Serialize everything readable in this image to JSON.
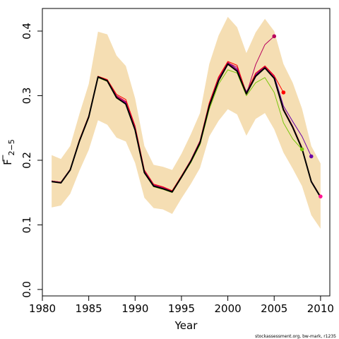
{
  "chart_data": {
    "type": "line",
    "xlabel": "Year",
    "ylabel_main": "F",
    "ylabel_sub": "2−5",
    "footnote": "stockassessment.org, bw-mark, r1235",
    "xlim": [
      1980,
      2011
    ],
    "ylim": [
      -0.01,
      0.435
    ],
    "xticks": [
      1980,
      1985,
      1990,
      1995,
      2000,
      2005,
      2010
    ],
    "yticks": [
      0.0,
      0.1,
      0.2,
      0.3,
      0.4
    ],
    "ytick_labels": [
      "0.0",
      "0.1",
      "0.2",
      "0.3",
      "0.4"
    ],
    "band_color": "#f5deb3",
    "band": {
      "x": [
        1981,
        1982,
        1983,
        1984,
        1985,
        1986,
        1987,
        1988,
        1989,
        1990,
        1991,
        1992,
        1993,
        1994,
        1995,
        1996,
        1997,
        1998,
        1999,
        2000,
        2001,
        2002,
        2003,
        2004,
        2005,
        2006,
        2007,
        2008,
        2009,
        2010
      ],
      "lower": [
        0.127,
        0.13,
        0.148,
        0.184,
        0.216,
        0.262,
        0.255,
        0.235,
        0.229,
        0.196,
        0.142,
        0.126,
        0.124,
        0.117,
        0.141,
        0.163,
        0.188,
        0.237,
        0.261,
        0.279,
        0.271,
        0.238,
        0.264,
        0.273,
        0.248,
        0.212,
        0.187,
        0.16,
        0.115,
        0.094
      ],
      "upper": [
        0.208,
        0.202,
        0.222,
        0.272,
        0.318,
        0.399,
        0.395,
        0.362,
        0.346,
        0.296,
        0.222,
        0.193,
        0.19,
        0.185,
        0.21,
        0.24,
        0.273,
        0.349,
        0.393,
        0.422,
        0.406,
        0.366,
        0.398,
        0.419,
        0.4,
        0.349,
        0.32,
        0.28,
        0.222,
        0.195
      ]
    },
    "series": [
      {
        "color": "#000000",
        "width": 2.0,
        "x": [
          1981,
          1982,
          1983,
          1984,
          1985,
          1986,
          1987,
          1988,
          1989,
          1990,
          1991,
          1992,
          1993,
          1994,
          1995,
          1996,
          1997,
          1998,
          1999,
          2000,
          2001,
          2002,
          2003,
          2004,
          2005,
          2006,
          2007,
          2008,
          2009,
          2010
        ],
        "y": [
          0.167,
          0.165,
          0.185,
          0.23,
          0.267,
          0.329,
          0.323,
          0.297,
          0.287,
          0.247,
          0.181,
          0.16,
          0.156,
          0.151,
          0.174,
          0.198,
          0.227,
          0.284,
          0.323,
          0.349,
          0.338,
          0.303,
          0.33,
          0.343,
          0.327,
          0.278,
          0.251,
          0.218,
          0.167,
          0.143
        ]
      },
      {
        "color": "#cc0044",
        "width": 1.0,
        "x": [
          1981,
          1982,
          1983,
          1984,
          1985,
          1986,
          1987,
          1988,
          1989,
          1990,
          1991,
          1992,
          1993,
          1994,
          1995,
          1996,
          1997,
          1998,
          1999,
          2000,
          2001,
          2002,
          2003,
          2004,
          2005,
          2006,
          2007,
          2008,
          2009,
          2010
        ],
        "y": [
          0.168,
          0.166,
          0.186,
          0.231,
          0.268,
          0.33,
          0.324,
          0.299,
          0.29,
          0.25,
          0.183,
          0.162,
          0.157,
          0.152,
          0.175,
          0.199,
          0.228,
          0.286,
          0.326,
          0.352,
          0.341,
          0.305,
          0.332,
          0.345,
          0.33,
          0.28,
          0.253,
          0.22,
          0.168,
          0.144
        ]
      },
      {
        "color": "#ff1493",
        "width": 1.0,
        "x": [
          1981,
          1982,
          1983,
          1984,
          1985,
          1986,
          1987,
          1988,
          1989,
          1990,
          1991,
          1992,
          1993,
          1994,
          1995,
          1996,
          1997,
          1998,
          1999,
          2000,
          2001,
          2002,
          2003,
          2004,
          2005,
          2006,
          2007,
          2008,
          2009,
          2010
        ],
        "y": [
          0.168,
          0.166,
          0.186,
          0.231,
          0.268,
          0.33,
          0.323,
          0.298,
          0.289,
          0.249,
          0.182,
          0.161,
          0.157,
          0.152,
          0.175,
          0.199,
          0.228,
          0.285,
          0.325,
          0.351,
          0.34,
          0.304,
          0.331,
          0.344,
          0.329,
          0.279,
          0.252,
          0.219,
          0.168,
          0.144
        ],
        "end_point": true
      },
      {
        "color": "#6a00a8",
        "width": 1.0,
        "x": [
          1981,
          1982,
          1983,
          1984,
          1985,
          1986,
          1987,
          1988,
          1989,
          1990,
          1991,
          1992,
          1993,
          1994,
          1995,
          1996,
          1997,
          1998,
          1999,
          2000,
          2001,
          2002,
          2003,
          2004,
          2005,
          2006,
          2007,
          2008,
          2009
        ],
        "y": [
          0.167,
          0.165,
          0.185,
          0.23,
          0.268,
          0.329,
          0.322,
          0.297,
          0.289,
          0.249,
          0.182,
          0.161,
          0.156,
          0.151,
          0.174,
          0.199,
          0.229,
          0.287,
          0.327,
          0.351,
          0.341,
          0.306,
          0.333,
          0.346,
          0.331,
          0.284,
          0.26,
          0.237,
          0.206
        ],
        "end_point": true
      },
      {
        "color": "#7ac70c",
        "width": 1.0,
        "x": [
          1981,
          1982,
          1983,
          1984,
          1985,
          1986,
          1987,
          1988,
          1989,
          1990,
          1991,
          1992,
          1993,
          1994,
          1995,
          1996,
          1997,
          1998,
          1999,
          2000,
          2001,
          2002,
          2003,
          2004,
          2005,
          2006,
          2007,
          2008
        ],
        "y": [
          0.167,
          0.165,
          0.185,
          0.229,
          0.267,
          0.328,
          0.322,
          0.296,
          0.287,
          0.246,
          0.18,
          0.159,
          0.155,
          0.15,
          0.173,
          0.196,
          0.224,
          0.279,
          0.318,
          0.34,
          0.335,
          0.3,
          0.32,
          0.328,
          0.305,
          0.258,
          0.233,
          0.217
        ],
        "end_point": true
      },
      {
        "color": "#ff0000",
        "width": 1.0,
        "x": [
          1981,
          1982,
          1983,
          1984,
          1985,
          1986,
          1987,
          1988,
          1989,
          1990,
          1991,
          1992,
          1993,
          1994,
          1995,
          1996,
          1997,
          1998,
          1999,
          2000,
          2001,
          2002,
          2003,
          2004,
          2005,
          2006
        ],
        "y": [
          0.168,
          0.166,
          0.186,
          0.232,
          0.269,
          0.33,
          0.325,
          0.302,
          0.294,
          0.253,
          0.185,
          0.163,
          0.159,
          0.153,
          0.176,
          0.2,
          0.23,
          0.289,
          0.329,
          0.353,
          0.347,
          0.304,
          0.335,
          0.346,
          0.331,
          0.305
        ],
        "end_point": true
      },
      {
        "color": "#b8005c",
        "width": 1.0,
        "x": [
          1981,
          1982,
          1983,
          1984,
          1985,
          1986,
          1987,
          1988,
          1989,
          1990,
          1991,
          1992,
          1993,
          1994,
          1995,
          1996,
          1997,
          1998,
          1999,
          2000,
          2001,
          2002,
          2003,
          2004,
          2005
        ],
        "y": [
          0.168,
          0.166,
          0.186,
          0.231,
          0.268,
          0.329,
          0.324,
          0.3,
          0.291,
          0.251,
          0.184,
          0.162,
          0.158,
          0.152,
          0.175,
          0.2,
          0.23,
          0.287,
          0.327,
          0.351,
          0.344,
          0.302,
          0.348,
          0.379,
          0.392
        ],
        "end_point": true
      }
    ]
  }
}
